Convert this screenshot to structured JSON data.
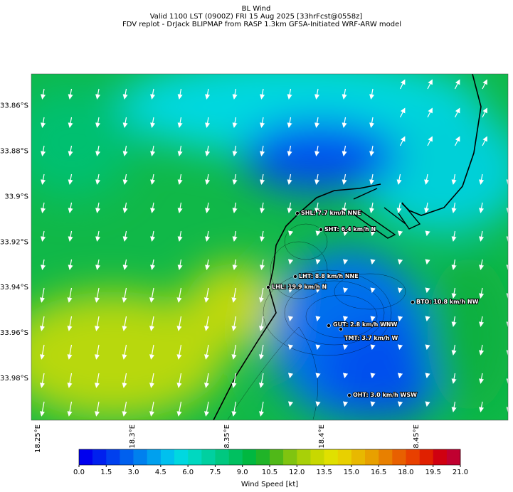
{
  "header": {
    "lines": [
      "BL Wind",
      "Valid 1100 LST (0900Z) FRI 15 Aug 2025 [33hrFcst@0558z]",
      "FDV replot - DrJack BLIPMAP from RASP 1.3km GFSA-Initiated WRF-ARW model"
    ]
  },
  "map": {
    "lat_lim": [
      33.846,
      33.9985
    ],
    "lon_lim": [
      18.2466,
      18.4985
    ],
    "lat_ticks": [
      {
        "value": 33.86,
        "label": "33.86°S"
      },
      {
        "value": 33.88,
        "label": "33.88°S"
      },
      {
        "value": 33.9,
        "label": "33.9°S"
      },
      {
        "value": 33.92,
        "label": "33.92°S"
      },
      {
        "value": 33.94,
        "label": "33.94°S"
      },
      {
        "value": 33.96,
        "label": "33.96°S"
      },
      {
        "value": 33.98,
        "label": "33.98°S"
      }
    ],
    "lon_ticks": [
      {
        "value": 18.25,
        "label": "18.25°E"
      },
      {
        "value": 18.3,
        "label": "18.3°E"
      },
      {
        "value": 18.35,
        "label": "18.35°E"
      },
      {
        "value": 18.4,
        "label": "18.4°E"
      },
      {
        "value": 18.45,
        "label": "18.45°E"
      }
    ],
    "stations": [
      "SHL: 7.7 km/h NNE",
      "SHT: 6.4 km/h N",
      "LHT: 8.8 km/h NNE",
      "LHL: 19.9 km/h N",
      "BTO: 10.8 km/h NW",
      "GUT: 2.8 km/h WNW",
      "TMT: 3.7 km/h W",
      "OHT: 3.0 km/h WSW"
    ]
  },
  "colorbar": {
    "lim": [
      0,
      21
    ],
    "colors": [
      "#0000ee",
      "#0020ee",
      "#0040ee",
      "#0060ee",
      "#0080ee",
      "#00a0ee",
      "#00c0ee",
      "#00d8e0",
      "#00d8c0",
      "#00d0a0",
      "#00c880",
      "#00c060",
      "#00b840",
      "#20b428",
      "#50b818",
      "#80c410",
      "#a8d008",
      "#c8d800",
      "#e0e000",
      "#e8d000",
      "#e8b800",
      "#e8a000",
      "#e88000",
      "#e86000",
      "#e84000",
      "#e02000",
      "#d00010",
      "#c00030"
    ],
    "ticks": [
      {
        "value": 0,
        "label": "0.0"
      },
      {
        "value": 1.5,
        "label": "1.5"
      },
      {
        "value": 3,
        "label": "3.0"
      },
      {
        "value": 4.5,
        "label": "4.5"
      },
      {
        "value": 6,
        "label": "6.0"
      },
      {
        "value": 7.5,
        "label": "7.5"
      },
      {
        "value": 9,
        "label": "9.0"
      },
      {
        "value": 10.5,
        "label": "10.5"
      },
      {
        "value": 12,
        "label": "12.0"
      },
      {
        "value": 13.5,
        "label": "13.5"
      },
      {
        "value": 15,
        "label": "15.0"
      },
      {
        "value": 16.5,
        "label": "16.5"
      },
      {
        "value": 18,
        "label": "18.0"
      },
      {
        "value": 19.5,
        "label": "19.5"
      },
      {
        "value": 21,
        "label": "21.0"
      }
    ],
    "label": "Wind Speed [kt]"
  }
}
